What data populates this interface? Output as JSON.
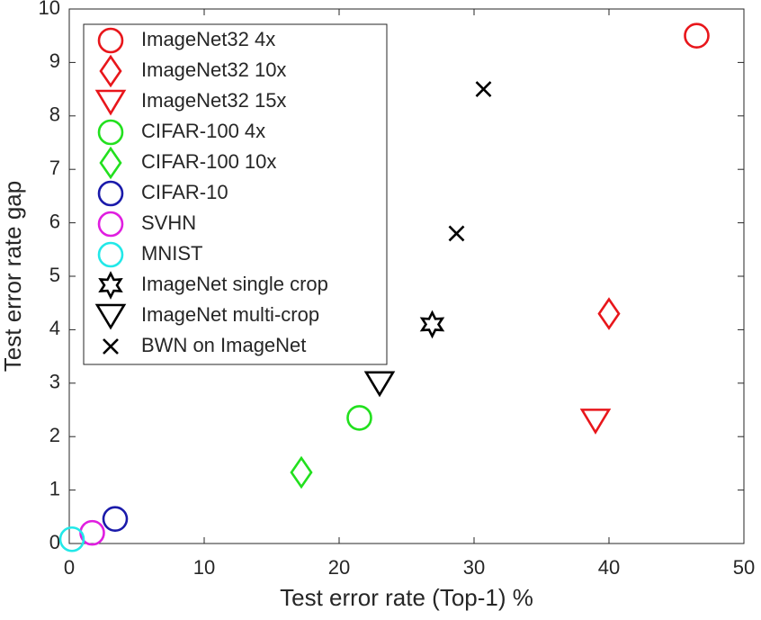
{
  "chart_data": {
    "type": "scatter",
    "xlabel": "Test error rate (Top-1) %",
    "ylabel": "Test error rate gap",
    "xlim": [
      0,
      50
    ],
    "xticks": [
      0,
      10,
      20,
      30,
      40,
      50
    ],
    "ylim": [
      0,
      10
    ],
    "yticks": [
      0,
      1,
      2,
      3,
      4,
      5,
      6,
      7,
      8,
      9,
      10
    ],
    "legend": "upper left",
    "series": [
      {
        "name": "ImageNet32 4x",
        "color": "#e8161b",
        "marker": "circle",
        "x": [
          46.5
        ],
        "y": [
          9.5
        ]
      },
      {
        "name": "ImageNet32 10x",
        "color": "#e8161b",
        "marker": "diamond",
        "x": [
          40
        ],
        "y": [
          4.3
        ]
      },
      {
        "name": "ImageNet32 15x",
        "color": "#e8161b",
        "marker": "triangle-down",
        "x": [
          39
        ],
        "y": [
          2.3
        ]
      },
      {
        "name": "CIFAR-100 4x",
        "color": "#22e01e",
        "marker": "circle",
        "x": [
          21.5
        ],
        "y": [
          2.35
        ]
      },
      {
        "name": "CIFAR-100 10x",
        "color": "#22e01e",
        "marker": "diamond",
        "x": [
          17.2
        ],
        "y": [
          1.33
        ]
      },
      {
        "name": "CIFAR-10",
        "color": "#1a1aaa",
        "marker": "circle",
        "x": [
          3.4
        ],
        "y": [
          0.46
        ]
      },
      {
        "name": "SVHN",
        "color": "#e01ee0",
        "marker": "circle",
        "x": [
          1.7
        ],
        "y": [
          0.2
        ]
      },
      {
        "name": "MNIST",
        "color": "#22e8e8",
        "marker": "circle",
        "x": [
          0.2
        ],
        "y": [
          0.08
        ]
      },
      {
        "name": "ImageNet single crop",
        "color": "#000000",
        "marker": "hexagram",
        "x": [
          26.9
        ],
        "y": [
          4.1
        ]
      },
      {
        "name": "ImageNet multi-crop",
        "color": "#000000",
        "marker": "triangle-down",
        "x": [
          23
        ],
        "y": [
          3.0
        ]
      },
      {
        "name": "BWN on ImageNet",
        "color": "#000000",
        "marker": "x",
        "x": [
          30.7,
          28.7
        ],
        "y": [
          8.5,
          5.8
        ]
      }
    ]
  }
}
